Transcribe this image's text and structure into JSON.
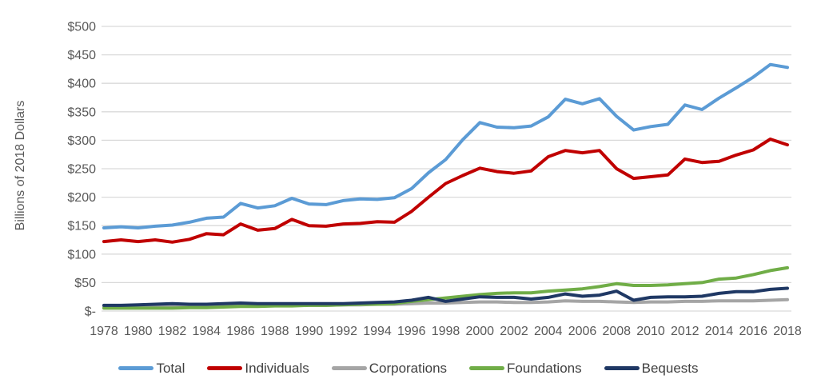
{
  "chart_data": {
    "type": "line",
    "title": "",
    "xlabel": "",
    "ylabel": "Billions of 2018 Dollars",
    "ylim": [
      0,
      500
    ],
    "ytick_step": 50,
    "ytick_labels": [
      "$-",
      "$50",
      "$100",
      "$150",
      "$200",
      "$250",
      "$300",
      "$350",
      "$400",
      "$450",
      "$500"
    ],
    "xtick_labels": [
      "1978",
      "1980",
      "1982",
      "1984",
      "1986",
      "1988",
      "1990",
      "1992",
      "1994",
      "1996",
      "1998",
      "2000",
      "2002",
      "2004",
      "2006",
      "2008",
      "2010",
      "2012",
      "2014",
      "2016",
      "2018"
    ],
    "grid": true,
    "legend_position": "bottom",
    "x": [
      1978,
      1979,
      1980,
      1981,
      1982,
      1983,
      1984,
      1985,
      1986,
      1987,
      1988,
      1989,
      1990,
      1991,
      1992,
      1993,
      1994,
      1995,
      1996,
      1997,
      1998,
      1999,
      2000,
      2001,
      2002,
      2003,
      2004,
      2005,
      2006,
      2007,
      2008,
      2009,
      2010,
      2011,
      2012,
      2013,
      2014,
      2015,
      2016,
      2017,
      2018
    ],
    "series": [
      {
        "name": "Total",
        "color": "#5B9BD5",
        "values": [
          146,
          148,
          146,
          149,
          151,
          156,
          163,
          165,
          189,
          181,
          185,
          198,
          188,
          187,
          194,
          197,
          196,
          199,
          215,
          243,
          266,
          301,
          331,
          323,
          322,
          325,
          341,
          372,
          364,
          373,
          342,
          318,
          324,
          328,
          362,
          354,
          374,
          392,
          411,
          433,
          428
        ]
      },
      {
        "name": "Individuals",
        "color": "#C00000",
        "values": [
          122,
          125,
          122,
          125,
          121,
          126,
          136,
          134,
          153,
          142,
          145,
          161,
          150,
          149,
          153,
          154,
          157,
          156,
          175,
          200,
          224,
          238,
          251,
          245,
          242,
          246,
          271,
          282,
          278,
          282,
          250,
          233,
          236,
          239,
          267,
          261,
          263,
          274,
          283,
          302,
          292
        ]
      },
      {
        "name": "Corporations",
        "color": "#A5A5A5",
        "values": [
          8,
          9,
          9,
          10,
          10,
          10,
          11,
          12,
          12,
          11,
          11,
          11,
          10,
          10,
          11,
          11,
          12,
          12,
          13,
          14,
          14,
          15,
          16,
          16,
          15,
          15,
          16,
          18,
          17,
          17,
          16,
          15,
          16,
          16,
          17,
          17,
          18,
          18,
          18,
          19,
          20
        ]
      },
      {
        "name": "Foundations",
        "color": "#70AD47",
        "values": [
          5,
          5,
          5,
          5,
          5,
          6,
          6,
          7,
          8,
          8,
          9,
          9,
          10,
          10,
          11,
          12,
          12,
          13,
          17,
          20,
          23,
          26,
          29,
          31,
          32,
          32,
          35,
          37,
          39,
          43,
          48,
          45,
          45,
          46,
          48,
          50,
          56,
          58,
          64,
          71,
          76
        ]
      },
      {
        "name": "Bequests",
        "color": "#1F3864",
        "values": [
          10,
          10,
          11,
          12,
          13,
          12,
          12,
          13,
          14,
          13,
          13,
          13,
          13,
          13,
          13,
          14,
          15,
          16,
          19,
          24,
          17,
          21,
          25,
          24,
          24,
          21,
          24,
          30,
          26,
          28,
          35,
          19,
          24,
          25,
          25,
          26,
          31,
          34,
          34,
          38,
          40
        ]
      }
    ]
  },
  "colors": {
    "axis_text": "#595959",
    "gridline": "#D9D9D9",
    "legend_text": "#404040",
    "background": "#FFFFFF"
  }
}
